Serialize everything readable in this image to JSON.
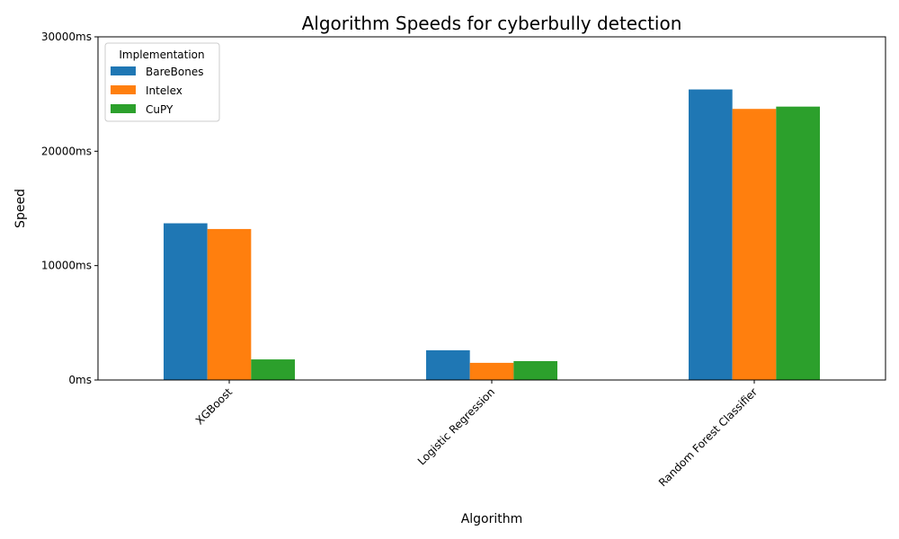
{
  "chart_data": {
    "type": "bar",
    "title": "Algorithm Speeds for cyberbully detection",
    "xlabel": "Algorithm",
    "ylabel": "Speed",
    "categories": [
      "XGBoost",
      "Logistic Regression",
      "Random Forest Classifier"
    ],
    "series": [
      {
        "name": "BareBones",
        "color": "#1f77b4",
        "values": [
          13700,
          2600,
          25400
        ]
      },
      {
        "name": "Intelex",
        "color": "#ff7f0e",
        "values": [
          13200,
          1500,
          23700
        ]
      },
      {
        "name": "CuPY",
        "color": "#2ca02c",
        "values": [
          1800,
          1650,
          23900
        ]
      }
    ],
    "ylim": [
      0,
      30000
    ],
    "yticks": [
      0,
      10000,
      20000,
      30000
    ],
    "ytick_labels": [
      "0ms",
      "10000ms",
      "20000ms",
      "30000ms"
    ],
    "legend": {
      "title": "Implementation",
      "placement": "top-left"
    },
    "grid": false
  }
}
